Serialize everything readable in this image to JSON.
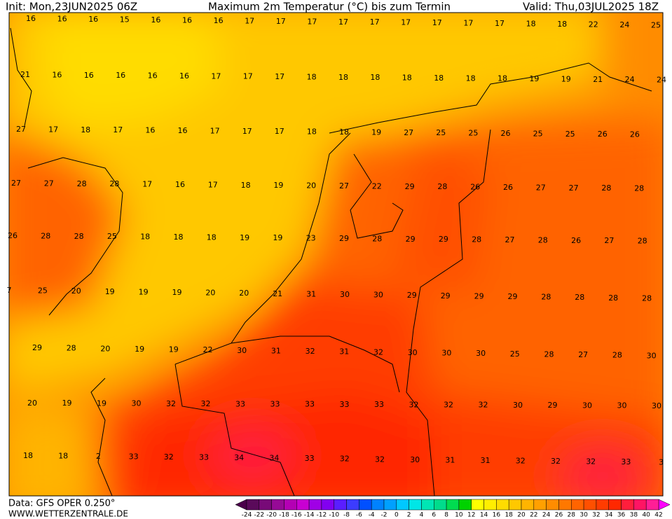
{
  "header": {
    "init": "Init: Mon,23JUN2025 06Z",
    "title": "Maximum 2m Temperatur (°C) bis zum Termin",
    "valid": "Valid: Thu,03JUL2025 18Z"
  },
  "map": {
    "rows": [
      [
        16,
        16,
        16,
        15,
        16,
        16,
        16,
        17,
        17,
        17,
        17,
        17,
        17,
        17,
        17,
        17,
        18,
        18,
        22,
        24,
        25
      ],
      [
        21,
        16,
        16,
        16,
        16,
        16,
        17,
        17,
        17,
        18,
        18,
        18,
        18,
        18,
        18,
        18,
        19,
        19,
        21,
        24,
        24
      ],
      [
        27,
        17,
        18,
        17,
        16,
        16,
        17,
        17,
        17,
        18,
        18,
        19,
        27,
        25,
        25,
        26,
        25,
        25,
        26,
        26
      ],
      [
        27,
        27,
        28,
        28,
        17,
        16,
        17,
        18,
        19,
        20,
        27,
        22,
        29,
        28,
        26,
        26,
        27,
        27,
        28,
        28
      ],
      [
        26,
        28,
        28,
        25,
        18,
        18,
        18,
        19,
        19,
        23,
        29,
        28,
        29,
        29,
        28,
        27,
        28,
        26,
        27,
        28
      ],
      [
        7,
        25,
        20,
        19,
        19,
        19,
        20,
        20,
        21,
        31,
        30,
        30,
        29,
        29,
        29,
        29,
        28,
        28,
        28,
        28
      ],
      [
        29,
        28,
        20,
        19,
        19,
        22,
        30,
        31,
        32,
        31,
        32,
        30,
        30,
        30,
        25,
        28,
        27,
        28,
        30
      ],
      [
        20,
        19,
        19,
        30,
        32,
        32,
        33,
        33,
        33,
        33,
        33,
        32,
        32,
        32,
        30,
        29,
        30,
        30,
        30
      ],
      [
        18,
        18,
        2,
        33,
        32,
        33,
        34,
        34,
        33,
        32,
        32,
        30,
        31,
        31,
        32,
        32,
        32,
        33,
        3
      ]
    ]
  },
  "legend": {
    "ticks": [
      -24,
      -22,
      -20,
      -18,
      -16,
      -14,
      -12,
      -10,
      -8,
      -6,
      -4,
      -2,
      0,
      2,
      4,
      6,
      8,
      10,
      12,
      14,
      16,
      18,
      20,
      22,
      24,
      26,
      28,
      30,
      32,
      34,
      36,
      38,
      40,
      42
    ],
    "colors": [
      "#5a0a5a",
      "#780a78",
      "#960a96",
      "#b400b4",
      "#c800d2",
      "#a000e6",
      "#8200f0",
      "#5a1eff",
      "#3c3cff",
      "#0050ff",
      "#0082ff",
      "#00a0ff",
      "#00c8ff",
      "#00e6e6",
      "#00e6b4",
      "#00dc8c",
      "#00dc50",
      "#00d200",
      "#ffff00",
      "#ffee00",
      "#ffdc00",
      "#ffc800",
      "#ffb400",
      "#ffa000",
      "#ff8c00",
      "#ff7800",
      "#ff6400",
      "#ff5000",
      "#ff3c00",
      "#ff2800",
      "#ff1e3c",
      "#ff1464",
      "#ff1e96"
    ],
    "low_color": "#4b004b",
    "high_color": "#ff00ff"
  },
  "footer": {
    "source": "Data: GFS OPER 0.250°",
    "site": "WWW.WETTERZENTRALE.DE"
  }
}
